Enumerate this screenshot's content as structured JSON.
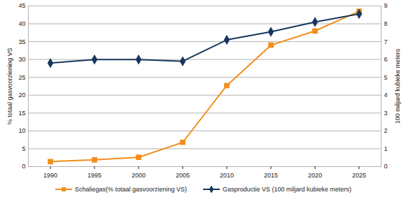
{
  "chart_data": {
    "type": "line",
    "x": [
      1990,
      1995,
      2000,
      2005,
      2010,
      2015,
      2020,
      2025
    ],
    "xlim": [
      1987.5,
      2027.5
    ],
    "xticks": [
      1990,
      1995,
      2000,
      2005,
      2010,
      2015,
      2020,
      2025
    ],
    "ylim": [
      0,
      45
    ],
    "yticks": [
      0,
      5,
      10,
      15,
      20,
      25,
      30,
      35,
      40,
      45
    ],
    "y2lim": [
      0,
      9
    ],
    "y2ticks": [
      0,
      1,
      2,
      3,
      4,
      5,
      6,
      7,
      8,
      9
    ],
    "ylabel": "% totaal gasvoorziening VS",
    "y2label": "100 miljard kubieke meters",
    "grid": true,
    "legend": "bottom",
    "series": [
      {
        "name": "Schaliegas(% totaal gasvoorziening VS)",
        "color": "#f28e1c",
        "marker": "square",
        "values": [
          1.4,
          1.9,
          2.6,
          6.8,
          22.7,
          34,
          38,
          43.5
        ]
      },
      {
        "name": "Gasproductie VS (100 miljard kubieke meters)",
        "color": "#17375e",
        "marker": "diamond",
        "axis": "y2",
        "values": [
          5.8,
          6.0,
          6.0,
          5.9,
          7.1,
          7.55,
          8.1,
          8.55
        ]
      }
    ]
  }
}
